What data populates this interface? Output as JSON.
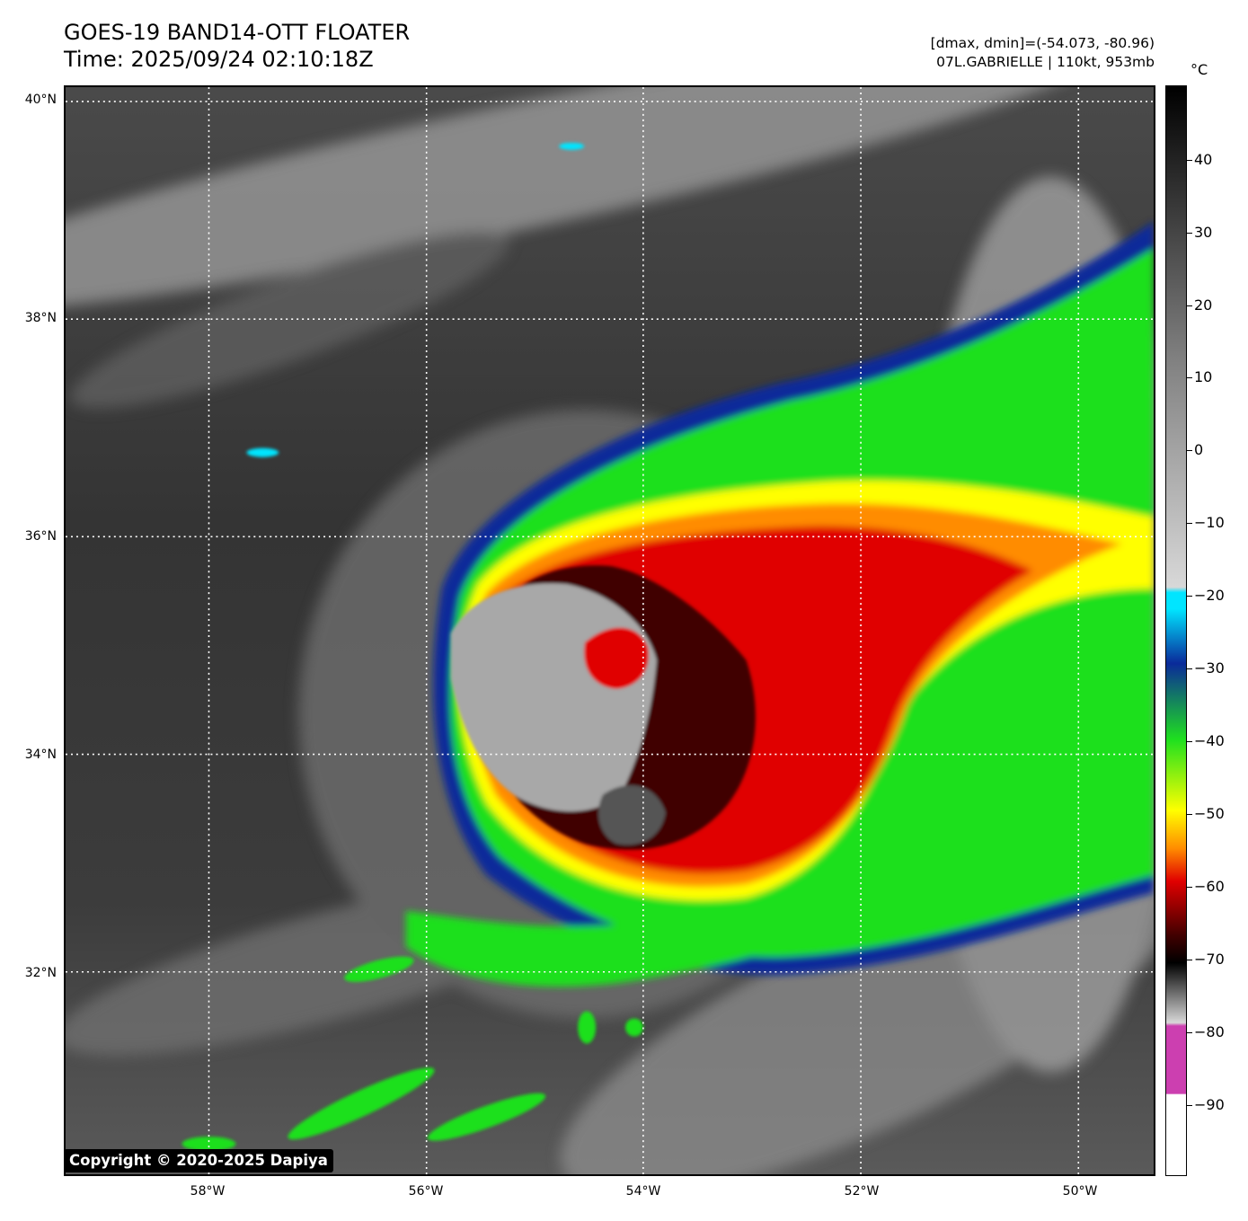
{
  "header": {
    "title_line1": "GOES-19 BAND14-OTT FLOATER",
    "title_line2": "Time: 2025/09/24 02:10:18Z",
    "info_line1": "[dmax, dmin]=(-54.073, -80.96)",
    "info_line2": "07L.GABRIELLE | 110kt, 953mb"
  },
  "map": {
    "lat_labels": [
      "40°N",
      "38°N",
      "36°N",
      "34°N",
      "32°N"
    ],
    "lon_labels": [
      "58°W",
      "56°W",
      "54°W",
      "52°W",
      "50°W"
    ],
    "grid": true,
    "grid_style": "dotted-white"
  },
  "colorbar": {
    "unit": "°C",
    "tick_labels": [
      "40",
      "30",
      "20",
      "10",
      "0",
      "−10",
      "−20",
      "−30",
      "−40",
      "−50",
      "−60",
      "−70",
      "−80",
      "−90"
    ],
    "colors": {
      "black": "#000000",
      "gray_mid": "#808080",
      "light_gray": "#d8d8d8",
      "cyan": "#00e5ff",
      "blue": "#0a2a9a",
      "green": "#1fe01f",
      "yellow": "#ffff00",
      "orange": "#ff8c00",
      "red": "#e00000",
      "dark_red": "#400000",
      "magenta": "#cc3fb0",
      "white": "#ffffff"
    }
  },
  "storm": {
    "name": "07L.GABRIELLE"
  },
  "copyright": "Copyright © 2020-2025 Dapiya"
}
